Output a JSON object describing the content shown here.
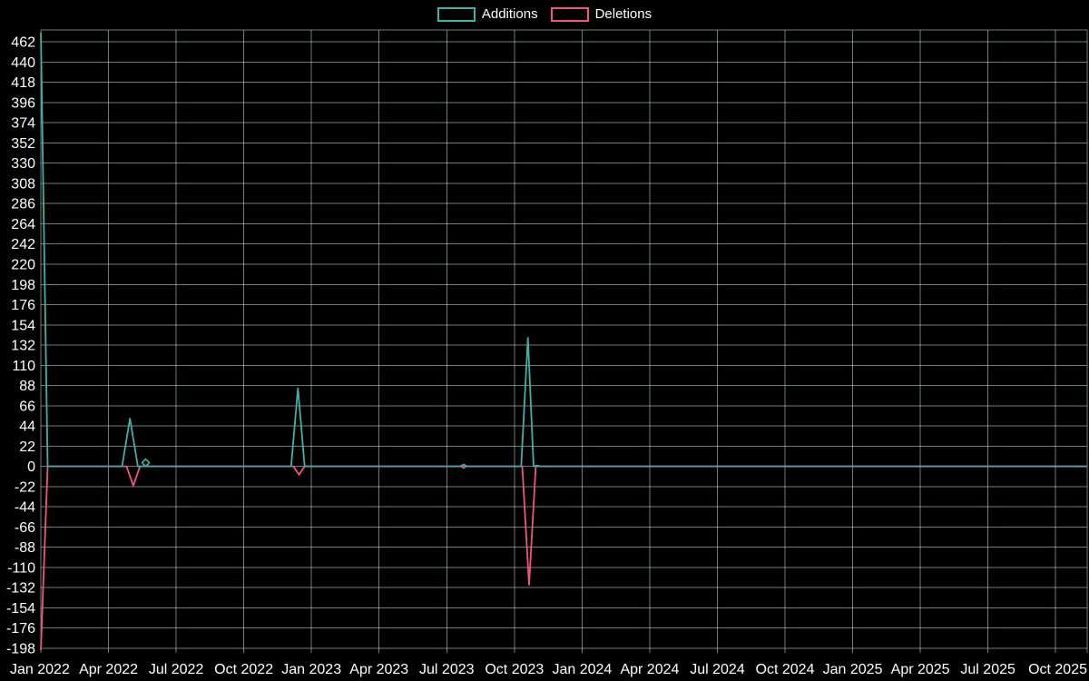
{
  "page": {
    "background_color": "#000000",
    "text_color": "#ffffff"
  },
  "chart_data": {
    "type": "line",
    "title": "",
    "legend_position": "top-center",
    "grid": true,
    "grid_color": "rgba(200,230,228,0.55)",
    "x_axis": {
      "unit": "month",
      "tick_interval_months": 3,
      "tick_labels": [
        "Jan 2022",
        "Apr 2022",
        "Jul 2022",
        "Oct 2022",
        "Jan 2023",
        "Apr 2023",
        "Jul 2023",
        "Oct 2023",
        "Jan 2024",
        "Apr 2024",
        "Jul 2024",
        "Oct 2024",
        "Jan 2025",
        "Apr 2025",
        "Jul 2025",
        "Oct 2025"
      ]
    },
    "x_range_months": [
      0,
      46.4
    ],
    "y_axis": {
      "ticks": [
        462,
        440,
        418,
        396,
        374,
        352,
        330,
        308,
        286,
        264,
        242,
        220,
        198,
        176,
        154,
        132,
        110,
        88,
        66,
        44,
        22,
        0,
        -22,
        -44,
        -66,
        -88,
        -110,
        -132,
        -154,
        -176,
        -198
      ]
    },
    "y_range": [
      -203,
      475
    ],
    "series": [
      {
        "name": "Additions",
        "color": "#41b1a7",
        "points": [
          [
            0,
            472
          ],
          [
            0.3,
            0
          ],
          [
            3.6,
            0
          ],
          [
            3.95,
            52
          ],
          [
            4.3,
            0
          ],
          [
            4.55,
            0
          ],
          [
            4.65,
            4
          ],
          [
            4.75,
            0
          ],
          [
            11.1,
            0
          ],
          [
            11.4,
            85
          ],
          [
            11.7,
            0
          ],
          [
            18.6,
            0
          ],
          [
            18.75,
            2
          ],
          [
            18.9,
            0
          ],
          [
            21.3,
            0
          ],
          [
            21.6,
            140
          ],
          [
            21.85,
            0
          ],
          [
            22.0,
            1
          ],
          [
            22.15,
            0
          ],
          [
            46.4,
            0
          ]
        ]
      },
      {
        "name": "Deletions",
        "color": "#f2567c",
        "points": [
          [
            0,
            -200
          ],
          [
            0.3,
            0
          ],
          [
            3.8,
            0
          ],
          [
            4.1,
            -21
          ],
          [
            4.4,
            0
          ],
          [
            11.2,
            0
          ],
          [
            11.45,
            -9
          ],
          [
            11.7,
            0
          ],
          [
            18.65,
            0
          ],
          [
            18.75,
            -2
          ],
          [
            18.85,
            0
          ],
          [
            21.35,
            0
          ],
          [
            21.65,
            -129
          ],
          [
            21.95,
            0
          ],
          [
            46.4,
            0
          ]
        ]
      }
    ],
    "markers": [
      {
        "series": "Additions",
        "shape": "diamond",
        "x": 4.65,
        "y": 4
      }
    ]
  }
}
